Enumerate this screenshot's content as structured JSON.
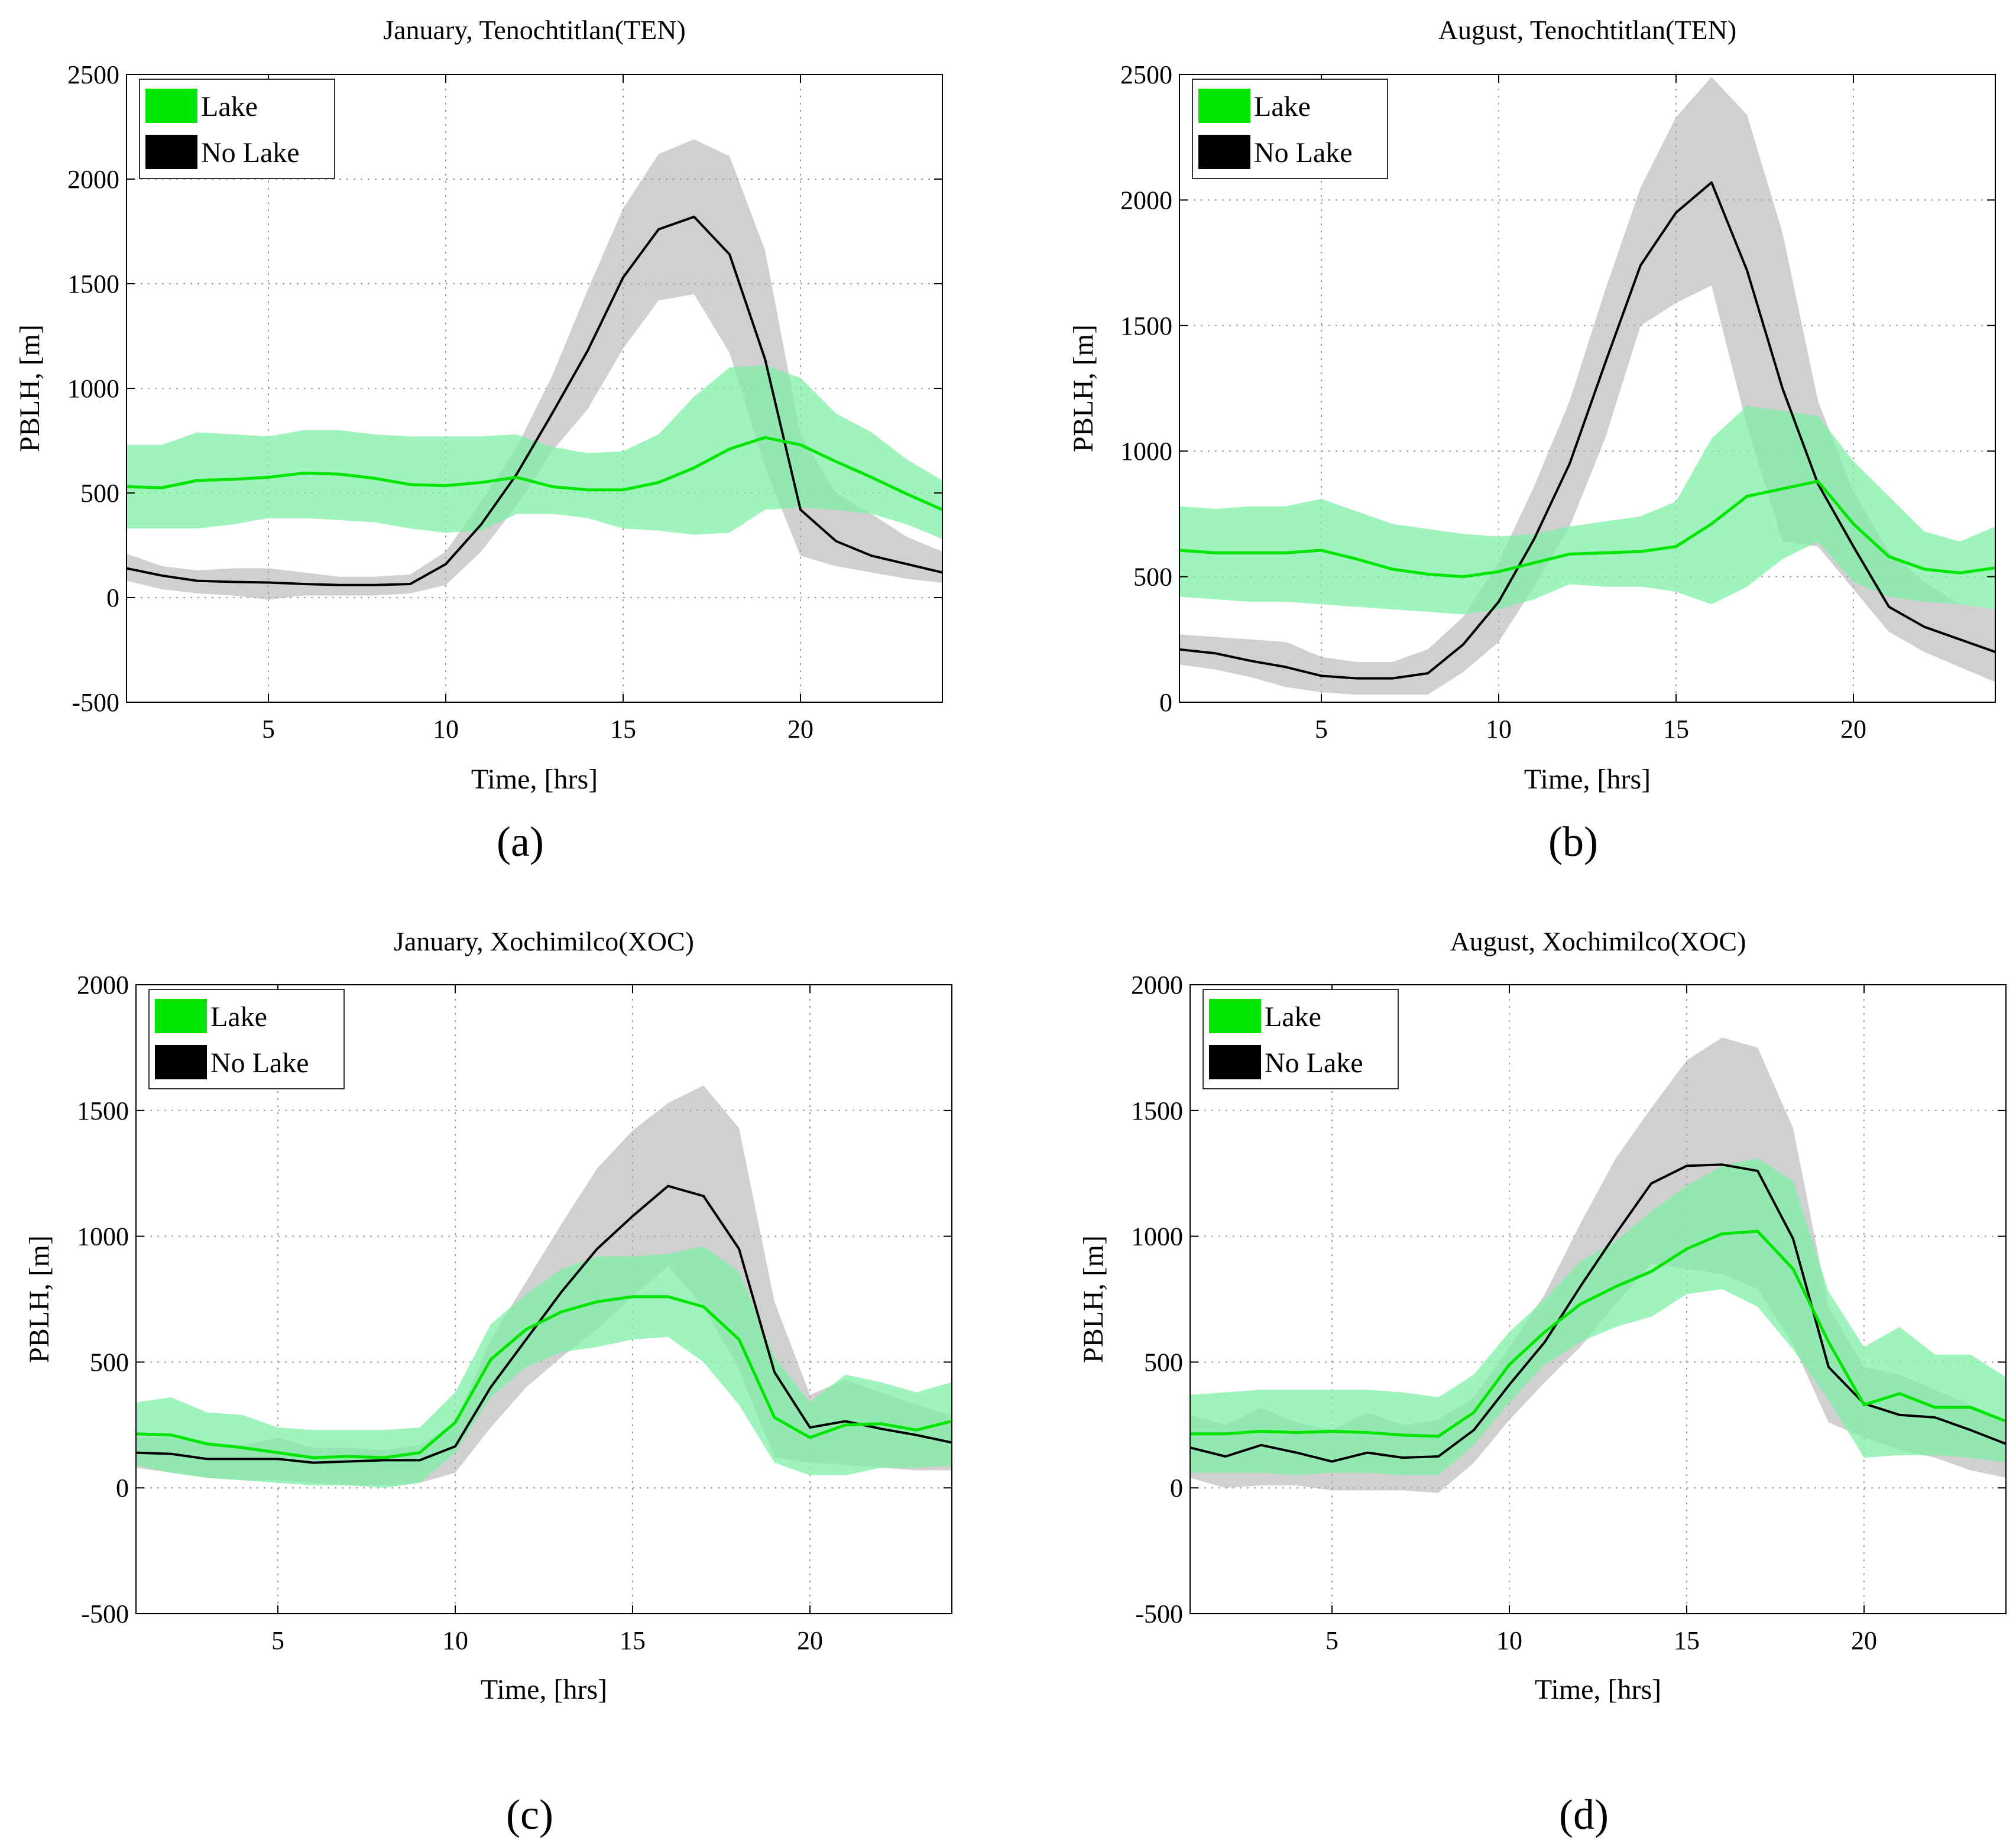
{
  "chart_data": [
    {
      "type": "line",
      "panel": "a",
      "title": "January, Tenochtitlan(TEN)",
      "caption": "(a)",
      "xlabel": "Time, [hrs]",
      "ylabel": "PBLH, [m]",
      "xlim": [
        1,
        24
      ],
      "ylim": [
        -500,
        2500
      ],
      "xticks": [
        5,
        10,
        15,
        20
      ],
      "yticks": [
        -500,
        0,
        500,
        1000,
        1500,
        2000,
        2500
      ],
      "grid": true,
      "legend_position": "top-left",
      "x": [
        1,
        2,
        3,
        4,
        5,
        6,
        7,
        8,
        9,
        10,
        11,
        12,
        13,
        14,
        15,
        16,
        17,
        18,
        19,
        20,
        21,
        22,
        23,
        24
      ],
      "series": [
        {
          "name": "Lake",
          "color": "#00e600",
          "band_color": "#7ef0a6",
          "values": [
            530,
            525,
            560,
            565,
            575,
            595,
            590,
            570,
            540,
            535,
            550,
            575,
            530,
            515,
            515,
            550,
            620,
            710,
            765,
            730,
            650,
            575,
            495,
            420
          ],
          "upper": [
            730,
            730,
            790,
            780,
            770,
            800,
            800,
            780,
            770,
            770,
            770,
            780,
            720,
            690,
            700,
            780,
            960,
            1100,
            1110,
            1050,
            880,
            790,
            660,
            560
          ],
          "lower": [
            330,
            330,
            330,
            350,
            380,
            380,
            370,
            360,
            330,
            310,
            320,
            400,
            400,
            380,
            330,
            320,
            300,
            310,
            420,
            430,
            420,
            400,
            350,
            280
          ]
        },
        {
          "name": "No Lake",
          "color": "#000000",
          "band_color": "#a9a9a9",
          "values": [
            140,
            105,
            80,
            75,
            72,
            65,
            60,
            60,
            65,
            160,
            350,
            590,
            880,
            1180,
            1530,
            1760,
            1820,
            1640,
            1140,
            420,
            270,
            200,
            160,
            120
          ],
          "upper": [
            210,
            150,
            130,
            140,
            140,
            120,
            100,
            100,
            110,
            220,
            460,
            720,
            1060,
            1470,
            1860,
            2120,
            2190,
            2110,
            1660,
            780,
            500,
            400,
            290,
            220
          ],
          "lower": [
            80,
            40,
            20,
            10,
            -10,
            10,
            10,
            10,
            20,
            60,
            220,
            440,
            700,
            900,
            1190,
            1420,
            1450,
            1170,
            620,
            200,
            150,
            120,
            90,
            70
          ]
        }
      ]
    },
    {
      "type": "line",
      "panel": "b",
      "title": "August, Tenochtitlan(TEN)",
      "caption": "(b)",
      "xlabel": "Time, [hrs]",
      "ylabel": "PBLH, [m]",
      "xlim": [
        1,
        24
      ],
      "ylim": [
        0,
        2500
      ],
      "xticks": [
        5,
        10,
        15,
        20
      ],
      "yticks": [
        0,
        500,
        1000,
        1500,
        2000,
        2500
      ],
      "grid": true,
      "legend_position": "top-left",
      "x": [
        1,
        2,
        3,
        4,
        5,
        6,
        7,
        8,
        9,
        10,
        11,
        12,
        13,
        14,
        15,
        16,
        17,
        18,
        19,
        20,
        21,
        22,
        23,
        24
      ],
      "series": [
        {
          "name": "Lake",
          "color": "#00e600",
          "band_color": "#7ef0a6",
          "values": [
            605,
            595,
            595,
            595,
            605,
            570,
            530,
            510,
            500,
            520,
            555,
            590,
            595,
            600,
            620,
            710,
            820,
            850,
            880,
            710,
            580,
            530,
            515,
            535
          ],
          "upper": [
            780,
            770,
            780,
            780,
            810,
            760,
            710,
            690,
            670,
            660,
            670,
            700,
            720,
            740,
            800,
            1050,
            1180,
            1160,
            1140,
            960,
            820,
            680,
            640,
            700
          ],
          "lower": [
            420,
            410,
            400,
            400,
            390,
            380,
            370,
            360,
            350,
            370,
            410,
            470,
            460,
            460,
            440,
            390,
            460,
            570,
            640,
            480,
            420,
            400,
            390,
            370
          ]
        },
        {
          "name": "No Lake",
          "color": "#000000",
          "band_color": "#a9a9a9",
          "values": [
            210,
            195,
            165,
            140,
            105,
            95,
            95,
            115,
            230,
            400,
            650,
            950,
            1350,
            1740,
            1950,
            2070,
            1720,
            1250,
            870,
            620,
            380,
            300,
            250,
            200
          ],
          "upper": [
            270,
            260,
            250,
            240,
            180,
            160,
            160,
            210,
            340,
            560,
            860,
            1200,
            1640,
            2050,
            2330,
            2490,
            2340,
            1870,
            1200,
            840,
            600,
            480,
            390,
            370
          ],
          "lower": [
            150,
            130,
            100,
            60,
            40,
            30,
            30,
            30,
            120,
            240,
            460,
            700,
            1050,
            1500,
            1590,
            1660,
            1100,
            640,
            620,
            450,
            280,
            200,
            140,
            80
          ]
        }
      ]
    },
    {
      "type": "line",
      "panel": "c",
      "title": "January, Xochimilco(XOC)",
      "caption": "(c)",
      "xlabel": "Time, [hrs]",
      "ylabel": "PBLH, [m]",
      "xlim": [
        1,
        24
      ],
      "ylim": [
        -500,
        2000
      ],
      "xticks": [
        5,
        10,
        15,
        20
      ],
      "yticks": [
        -500,
        0,
        500,
        1000,
        1500,
        2000
      ],
      "grid": true,
      "legend_position": "top-left",
      "x": [
        1,
        2,
        3,
        4,
        5,
        6,
        7,
        8,
        9,
        10,
        11,
        12,
        13,
        14,
        15,
        16,
        17,
        18,
        19,
        20,
        21,
        22,
        23,
        24
      ],
      "series": [
        {
          "name": "Lake",
          "color": "#00e600",
          "band_color": "#7ef0a6",
          "values": [
            215,
            210,
            175,
            160,
            140,
            120,
            125,
            120,
            140,
            260,
            510,
            630,
            700,
            740,
            760,
            760,
            720,
            590,
            280,
            200,
            250,
            255,
            230,
            265
          ],
          "upper": [
            340,
            360,
            300,
            290,
            240,
            230,
            230,
            230,
            240,
            380,
            650,
            770,
            870,
            920,
            920,
            930,
            960,
            860,
            520,
            340,
            450,
            420,
            380,
            420
          ],
          "lower": [
            90,
            60,
            40,
            30,
            20,
            10,
            10,
            0,
            20,
            140,
            360,
            480,
            540,
            560,
            590,
            600,
            500,
            330,
            100,
            50,
            50,
            80,
            80,
            90
          ]
        },
        {
          "name": "No Lake",
          "color": "#000000",
          "band_color": "#a9a9a9",
          "values": [
            140,
            135,
            115,
            115,
            115,
            100,
            105,
            110,
            110,
            165,
            400,
            590,
            780,
            950,
            1080,
            1200,
            1160,
            950,
            460,
            240,
            265,
            235,
            210,
            180
          ],
          "upper": [
            200,
            200,
            180,
            170,
            200,
            160,
            160,
            150,
            170,
            260,
            590,
            820,
            1050,
            1270,
            1420,
            1530,
            1600,
            1430,
            740,
            370,
            430,
            380,
            330,
            290
          ],
          "lower": [
            80,
            60,
            40,
            30,
            30,
            20,
            10,
            10,
            20,
            60,
            240,
            400,
            520,
            630,
            760,
            880,
            720,
            470,
            120,
            100,
            90,
            80,
            70,
            70
          ]
        }
      ]
    },
    {
      "type": "line",
      "panel": "d",
      "title": "August, Xochimilco(XOC)",
      "caption": "(d)",
      "xlabel": "Time, [hrs]",
      "ylabel": "PBLH, [m]",
      "xlim": [
        1,
        24
      ],
      "ylim": [
        -500,
        2000
      ],
      "xticks": [
        5,
        10,
        15,
        20
      ],
      "yticks": [
        -500,
        0,
        500,
        1000,
        1500,
        2000
      ],
      "grid": true,
      "legend_position": "top-left",
      "x": [
        1,
        2,
        3,
        4,
        5,
        6,
        7,
        8,
        9,
        10,
        11,
        12,
        13,
        14,
        15,
        16,
        17,
        18,
        19,
        20,
        21,
        22,
        23,
        24
      ],
      "series": [
        {
          "name": "Lake",
          "color": "#00e600",
          "band_color": "#7ef0a6",
          "values": [
            215,
            215,
            225,
            220,
            225,
            220,
            210,
            205,
            300,
            490,
            620,
            730,
            800,
            860,
            950,
            1010,
            1020,
            870,
            580,
            330,
            375,
            320,
            320,
            265
          ],
          "upper": [
            370,
            380,
            390,
            390,
            390,
            390,
            380,
            360,
            450,
            620,
            750,
            900,
            980,
            1100,
            1200,
            1280,
            1310,
            1220,
            780,
            560,
            640,
            530,
            530,
            440
          ],
          "lower": [
            60,
            60,
            60,
            50,
            60,
            60,
            50,
            50,
            170,
            340,
            490,
            580,
            640,
            680,
            770,
            790,
            720,
            550,
            350,
            120,
            130,
            130,
            120,
            100
          ]
        },
        {
          "name": "No Lake",
          "color": "#000000",
          "band_color": "#a9a9a9",
          "values": [
            160,
            125,
            170,
            140,
            105,
            140,
            120,
            125,
            230,
            410,
            580,
            800,
            1010,
            1210,
            1280,
            1285,
            1260,
            990,
            480,
            335,
            290,
            280,
            230,
            175
          ],
          "upper": [
            290,
            250,
            320,
            260,
            230,
            300,
            250,
            270,
            360,
            560,
            770,
            1050,
            1310,
            1510,
            1700,
            1790,
            1750,
            1430,
            720,
            480,
            450,
            390,
            330,
            270
          ],
          "lower": [
            40,
            0,
            10,
            10,
            -10,
            -10,
            -10,
            -20,
            100,
            270,
            420,
            560,
            730,
            890,
            870,
            850,
            790,
            570,
            260,
            200,
            150,
            120,
            70,
            40
          ]
        }
      ]
    }
  ]
}
